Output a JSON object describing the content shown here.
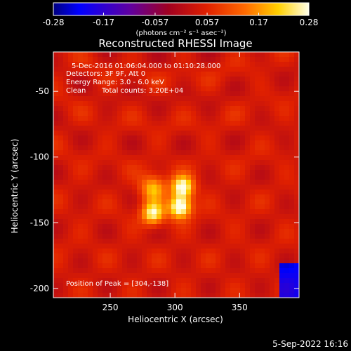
{
  "chart_data": {
    "type": "heatmap",
    "title": "Reconstructed RHESSI Image",
    "xlabel": "Heliocentric X (arcsec)",
    "ylabel": "Heliocentric Y (arcsec)",
    "xlim": [
      206,
      396
    ],
    "ylim": [
      -207,
      -20
    ],
    "xticks": [
      250,
      300,
      350
    ],
    "yticks": [
      -50,
      -100,
      -150,
      -200
    ],
    "colorbar": {
      "colormap": "hot",
      "range": [
        -0.28,
        0.28
      ],
      "ticks": [
        -0.28,
        -0.17,
        -0.057,
        0.057,
        0.17,
        0.28
      ],
      "tick_labels": [
        "-0.28",
        "-0.17",
        "-0.057",
        "0.057",
        "0.17",
        "0.28"
      ],
      "unit_label": "(photons cm⁻² s⁻¹ asec⁻²)"
    },
    "annotations": {
      "time_range": "5-Dec-2016 01:06:04.000 to 01:10:28.000",
      "detectors": "Detectors: 3F 9F, Att 0",
      "energy_range": "Energy Range: 3.0 - 6.0 keV",
      "method": "Clean",
      "total_counts": "Total counts: 3.20E+04",
      "peak": "Position of Peak = [304,-138]"
    },
    "sources": [
      {
        "x": 283,
        "y": -124,
        "amplitude": 0.17,
        "width": 7
      },
      {
        "x": 306,
        "y": -123,
        "amplitude": 0.26,
        "width": 6
      },
      {
        "x": 283,
        "y": -143,
        "amplitude": 0.22,
        "width": 6
      },
      {
        "x": 304,
        "y": -138,
        "amplitude": 0.28,
        "width": 6
      }
    ],
    "background_level": 0.04
  },
  "footer": {
    "date": "5-Sep-2022 16:16"
  }
}
